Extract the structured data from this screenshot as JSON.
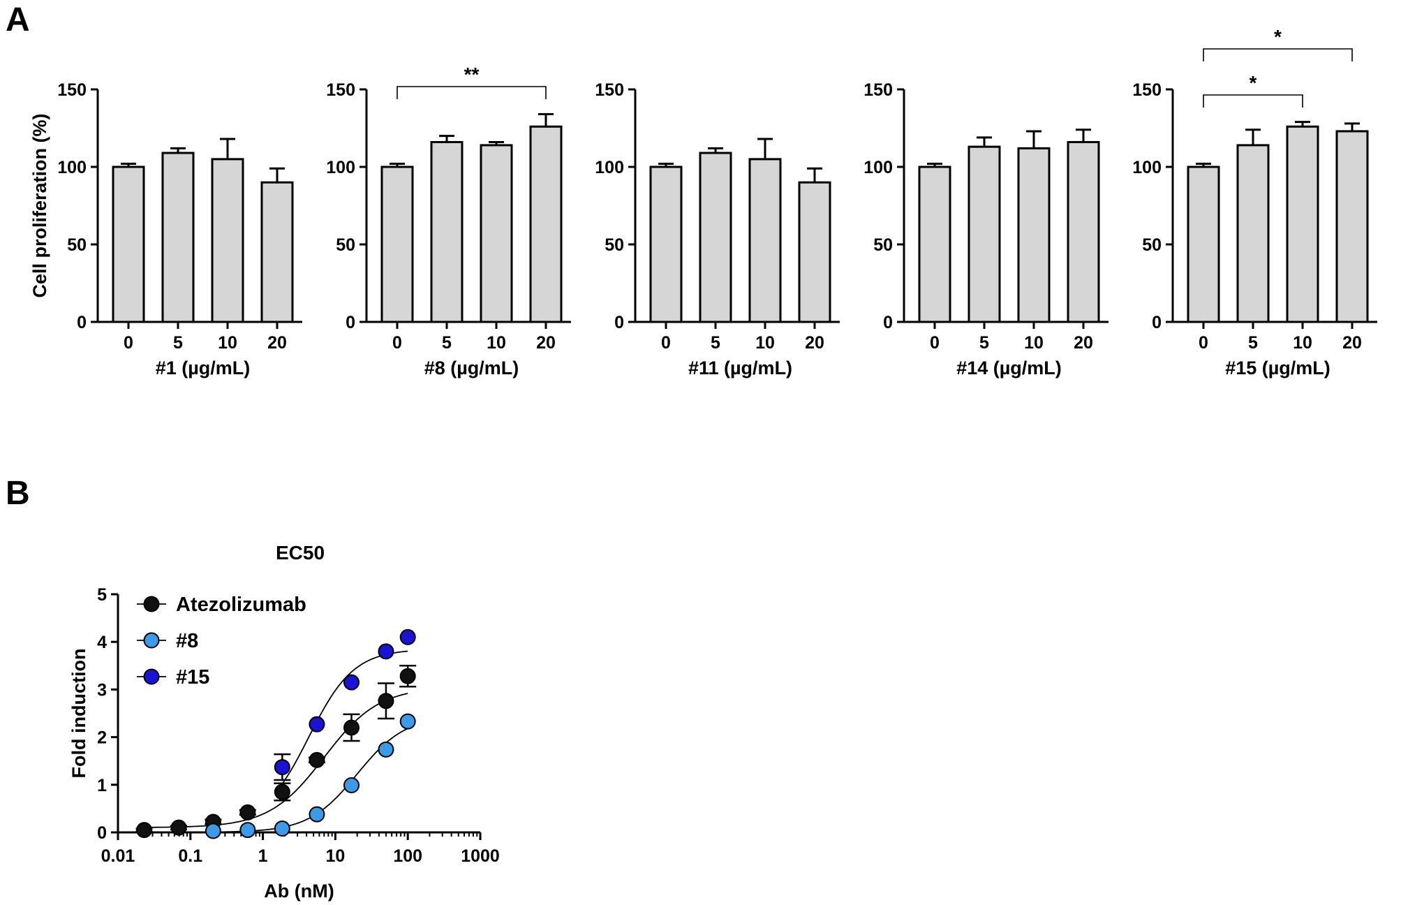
{
  "panels": {
    "a": "A",
    "b": "B"
  },
  "chart_data": [
    {
      "type": "bar",
      "panel": "A",
      "ylabel": "Cell proliferation (%)",
      "xlabel": "#1 (µg/mL)",
      "categories": [
        "0",
        "5",
        "10",
        "20"
      ],
      "values": [
        100,
        109,
        105,
        90
      ],
      "errors": [
        2,
        3,
        13,
        9
      ],
      "ylim": [
        0,
        150
      ],
      "yticks": [
        "0",
        "50",
        "100",
        "150"
      ],
      "significance": []
    },
    {
      "type": "bar",
      "panel": "A",
      "ylabel": "",
      "xlabel": "#8 (µg/mL)",
      "categories": [
        "0",
        "5",
        "10",
        "20"
      ],
      "values": [
        100,
        116,
        114,
        126
      ],
      "errors": [
        2,
        4,
        2,
        8
      ],
      "ylim": [
        0,
        150
      ],
      "yticks": [
        "0",
        "50",
        "100",
        "150"
      ],
      "significance": [
        {
          "from": 0,
          "to": 3,
          "label": "**"
        }
      ]
    },
    {
      "type": "bar",
      "panel": "A",
      "ylabel": "",
      "xlabel": "#11 (µg/mL)",
      "categories": [
        "0",
        "5",
        "10",
        "20"
      ],
      "values": [
        100,
        109,
        105,
        90
      ],
      "errors": [
        2,
        3,
        13,
        9
      ],
      "ylim": [
        0,
        150
      ],
      "yticks": [
        "0",
        "50",
        "100",
        "150"
      ],
      "significance": []
    },
    {
      "type": "bar",
      "panel": "A",
      "ylabel": "",
      "xlabel": "#14 (µg/mL)",
      "categories": [
        "0",
        "5",
        "10",
        "20"
      ],
      "values": [
        100,
        113,
        112,
        116
      ],
      "errors": [
        2,
        6,
        11,
        8
      ],
      "ylim": [
        0,
        150
      ],
      "yticks": [
        "0",
        "50",
        "100",
        "150"
      ],
      "significance": []
    },
    {
      "type": "bar",
      "panel": "A",
      "ylabel": "",
      "xlabel": "#15 (µg/mL)",
      "categories": [
        "0",
        "5",
        "10",
        "20"
      ],
      "values": [
        100,
        114,
        126,
        123
      ],
      "errors": [
        2,
        10,
        3,
        5
      ],
      "ylim": [
        0,
        150
      ],
      "yticks": [
        "0",
        "50",
        "100",
        "150"
      ],
      "significance": [
        {
          "from": 0,
          "to": 2,
          "label": "*"
        },
        {
          "from": 0,
          "to": 3,
          "label": "*"
        }
      ]
    },
    {
      "type": "scatter",
      "panel": "B",
      "title": "EC50",
      "xlabel": "Ab (nM)",
      "ylabel": "Fold induction",
      "xscale": "log",
      "xlim": [
        0.01,
        1000
      ],
      "ylim": [
        0,
        5
      ],
      "xticks": [
        0.01,
        0.1,
        1,
        10,
        100,
        1000
      ],
      "xtick_labels": [
        "0.01",
        "0.1",
        "1",
        "10",
        "100",
        "1000"
      ],
      "yticks": [
        0,
        1,
        2,
        3,
        4,
        5
      ],
      "ytick_labels": [
        "0",
        "1",
        "2",
        "3",
        "4",
        "5"
      ],
      "legend_position": "top-left",
      "series": [
        {
          "name": "Atezolizumab",
          "color": "#111111",
          "x": [
            0.023,
            0.069,
            0.206,
            0.617,
            1.85,
            5.56,
            16.7,
            50,
            100
          ],
          "y": [
            0.05,
            0.1,
            0.22,
            0.42,
            0.85,
            1.52,
            2.2,
            2.76,
            3.28
          ],
          "err": [
            0.03,
            0.04,
            0.05,
            0.05,
            0.18,
            0.05,
            0.28,
            0.37,
            0.22
          ],
          "fit": {
            "bottom": 0.1,
            "top": 3.05,
            "ec50": 7,
            "hill": 1.15
          }
        },
        {
          "name": "#8",
          "color": "#3a9be8",
          "x": [
            0.206,
            0.617,
            1.85,
            5.56,
            16.7,
            50,
            100
          ],
          "y": [
            0.03,
            0.05,
            0.08,
            0.38,
            0.99,
            1.74,
            2.33
          ],
          "err": [
            0,
            0,
            0,
            0,
            0,
            0,
            0
          ],
          "fit": {
            "bottom": 0.0,
            "top": 2.45,
            "ec50": 20,
            "hill": 1.3
          }
        },
        {
          "name": "#15",
          "color": "#1a13d6",
          "x": [
            1.85,
            5.56,
            16.7,
            50,
            100
          ],
          "y": [
            1.37,
            2.27,
            3.15,
            3.8,
            4.1
          ],
          "err": [
            0.27,
            0,
            0,
            0,
            0
          ],
          "fit": {
            "bottom": 0.15,
            "top": 3.85,
            "ec50": 4.3,
            "hill": 1.4
          }
        }
      ]
    }
  ]
}
